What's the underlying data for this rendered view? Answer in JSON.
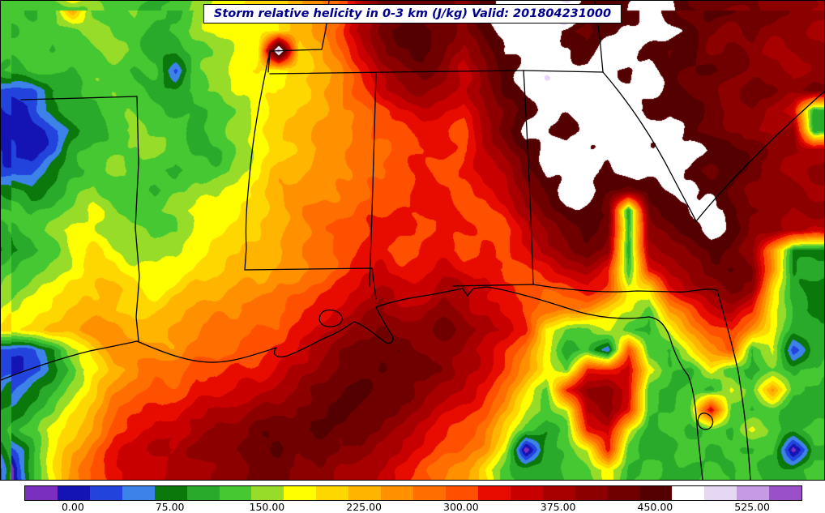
{
  "title": {
    "text": "Storm relative helicity in 0-3 km (J/kg) Valid: 201804231000",
    "color": "#00008b"
  },
  "chart_data": {
    "type": "heatmap",
    "title": "Storm relative helicity in 0-3 km (J/kg) Valid: 201804231000",
    "field_name": "Storm relative helicity in 0-3 km",
    "units": "J/kg",
    "valid_time": "201804231000",
    "legend_position": "bottom",
    "colorbar": {
      "vmin": -37.5,
      "vmax": 562.5,
      "step": 25,
      "tick_values": [
        0,
        75,
        150,
        225,
        300,
        375,
        450,
        525
      ],
      "tick_labels": [
        "0.00",
        "75.00",
        "150.00",
        "225.00",
        "300.00",
        "375.00",
        "450.00",
        "525.00"
      ],
      "colors": [
        "#7b2fbe",
        "#1414b4",
        "#2244dd",
        "#3c82e8",
        "#0a780a",
        "#2aaa2a",
        "#45c832",
        "#96dc28",
        "#ffff00",
        "#ffd700",
        "#ffb400",
        "#ff9000",
        "#ff6e00",
        "#ff5000",
        "#e80c00",
        "#c80000",
        "#a80000",
        "#8c0000",
        "#700000",
        "#540000",
        "#ffffff",
        "#e6d8f5",
        "#c79ae6",
        "#9a50c8"
      ]
    },
    "grid_encoding": "rows of base-24 digits (0-9,a-n); each char indexes colorbar.colors; grid covers full map extent left-to-right, top-to-bottom",
    "grid": [
      "656b6676578899abcfhiiihkkkjnjjjkjijjiihh",
      "56667665678889abdgijjihjkkkjijkkkjihihhg",
      "6656676556788n9acfhijigikkkkjkkjijhihghh",
      "566566562678989abeghihfhjkkkkkjkjijihhgh",
      "224566655678899abdfghgfhjkkkkkkkjiihiihi",
      "12455666556789aabcdeffegijkkkkkjjjihhgf5",
      "11245676656789abbcddeedgikkjkkkkkjihhgh5",
      "21256667655789abbccddedfhjkkkkkkkkjjihhg",
      "2245676656678aabbccdedefgikkkjkkkjijihgh",
      "5456766567789abbccddeedefhjkkjijkkjihhhg",
      "6567876678889abccddeeeddegijji5ijkkjihgh",
      "5678877668899abcddeedeeddfhiji5hijkjhhgf",
      "456898777899aabcdeedeededeghih5ghijihb44",
      "56789988899aabbcdefeefeeddefge6eghijib45",
      "67899a989aabbccdefgffggfedcded88eghih954",
      "789aaa99abbbccdefghgghgfedcbb986bdfge854",
      "89aabbaabbccddefghihhihgfe8668658bdeb855",
      "22479bbbbccddefghiiihhgfec8562d658bd5825",
      "12468abccddeefghiijiihgfdb86eef865865656",
      "24579bcddeeffghiijiihgfec96ehhf656586b65",
      "4568acdeefgghhiijiihgfedb868ghe656f65655",
      "5689bdeffghhiiijiihgfedc9656ef8565658656",
      "258acefgghhiijiihhgfedcb80568e6556565605",
      "058bdeffgghhiihhggfedcb96556685655656556"
    ]
  }
}
